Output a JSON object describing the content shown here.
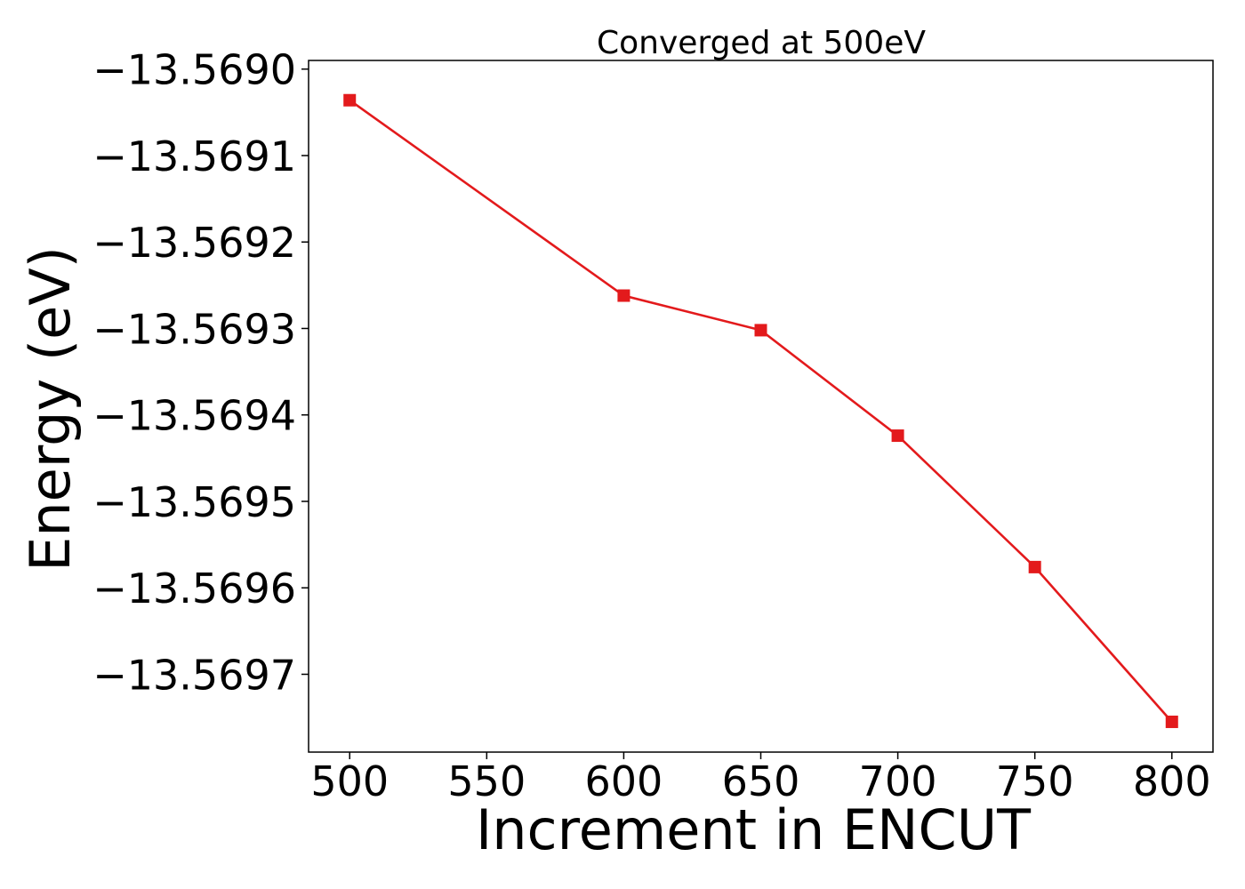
{
  "chart_data": {
    "type": "line",
    "title": "Converged at 500eV",
    "xlabel": "Increment in ENCUT",
    "ylabel": "Energy (eV)",
    "xlim": [
      485,
      815
    ],
    "ylim": [
      -13.56979,
      -13.56899
    ],
    "xticks": [
      500,
      550,
      600,
      650,
      700,
      750,
      800
    ],
    "xtick_labels": [
      "500",
      "550",
      "600",
      "650",
      "700",
      "750",
      "800"
    ],
    "yticks": [
      -13.569,
      -13.5691,
      -13.5692,
      -13.5693,
      -13.5694,
      -13.5695,
      -13.5696,
      -13.5697
    ],
    "ytick_labels": [
      "−13.5690",
      "−13.5691",
      "−13.5692",
      "−13.5693",
      "−13.5694",
      "−13.5695",
      "−13.5696",
      "−13.5697"
    ],
    "grid": false,
    "series": [
      {
        "color": "#e31a1c",
        "marker": "square",
        "x": [
          500,
          600,
          650,
          700,
          750,
          800
        ],
        "y": [
          -13.569036,
          -13.569262,
          -13.569302,
          -13.569424,
          -13.569576,
          -13.569755
        ]
      }
    ]
  }
}
